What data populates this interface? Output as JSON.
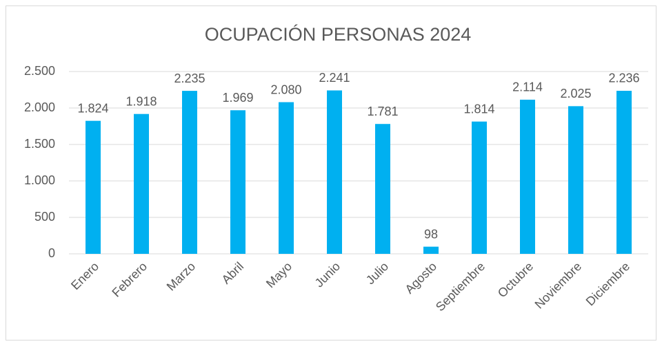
{
  "chart_data": {
    "type": "bar",
    "title": "OCUPACIÓN PERSONAS 2024",
    "categories": [
      "Enero",
      "Febrero",
      "Marzo",
      "Abril",
      "Mayo",
      "Junio",
      "Julio",
      "Agosto",
      "Septiembre",
      "Octubre",
      "Noviembre",
      "Diciembre"
    ],
    "values": [
      1824,
      1918,
      2235,
      1969,
      2080,
      2241,
      1781,
      98,
      1814,
      2114,
      2025,
      2236
    ],
    "value_labels": [
      "1.824",
      "1.918",
      "2.235",
      "1.969",
      "2.080",
      "2.241",
      "1.781",
      "98",
      "1.814",
      "2.114",
      "2.025",
      "2.236"
    ],
    "color": "#00b0f0",
    "ylim": [
      0,
      2500
    ],
    "yticks": [
      0,
      500,
      {
        "value": 1000,
        "label": "1.000"
      },
      {
        "value": 1500,
        "label": "1.500"
      },
      {
        "value": 2000,
        "label": "2.000"
      },
      {
        "value": 2500,
        "label": "2.500"
      }
    ],
    "grid": true
  }
}
